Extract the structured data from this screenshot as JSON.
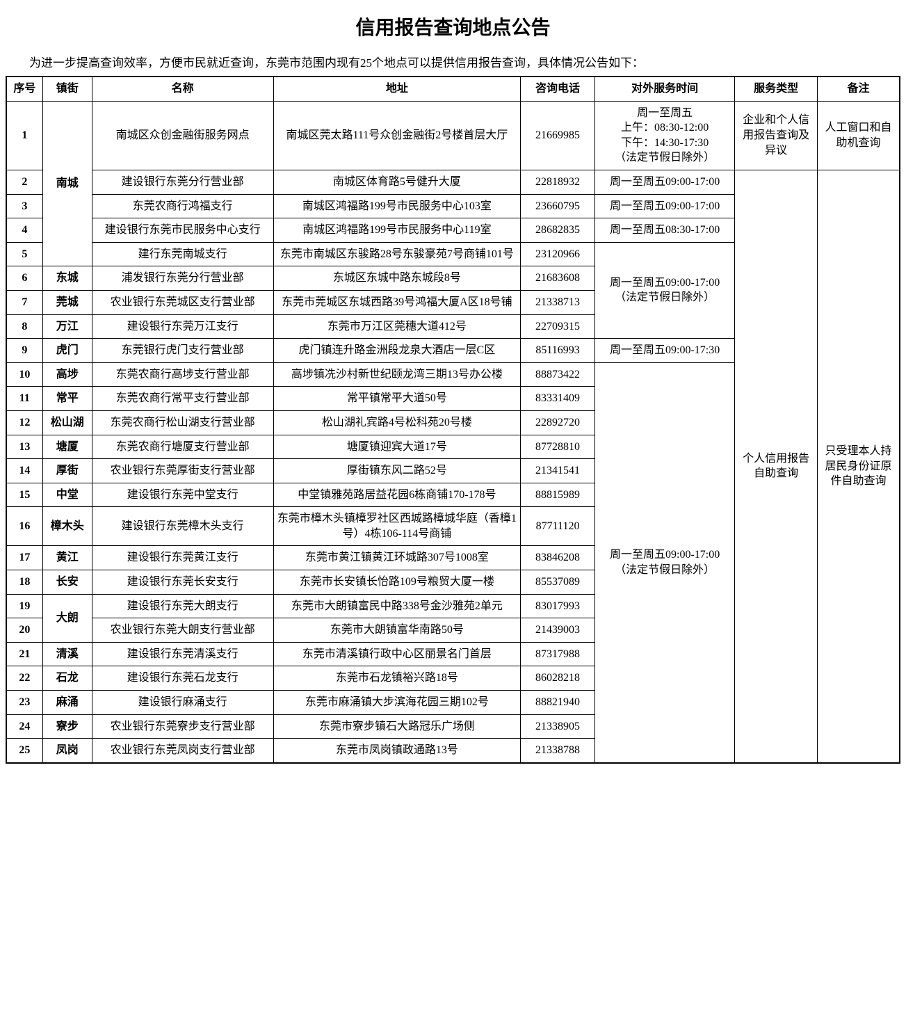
{
  "title": "信用报告查询地点公告",
  "intro": "为进一步提高查询效率，方便市民就近查询，东莞市范围内现有25个地点可以提供信用报告查询，具体情况公告如下：",
  "columns": {
    "num": "序号",
    "town": "镇街",
    "name": "名称",
    "addr": "地址",
    "tel": "咨询电话",
    "time": "对外服务时间",
    "type": "服务类型",
    "note": "备注"
  },
  "towns": {
    "nc": "南城",
    "dc": "东城",
    "gc": "莞城",
    "wj": "万江",
    "hm": "虎门",
    "gb": "高埗",
    "cp": "常平",
    "ssh": "松山湖",
    "tx": "塘厦",
    "hj": "厚街",
    "zt": "中堂",
    "zmt": "樟木头",
    "hjg": "黄江",
    "ca": "长安",
    "dl": "大朗",
    "qx": "清溪",
    "sl": "石龙",
    "my": "麻涌",
    "lb": "寮步",
    "fg": "凤岗"
  },
  "times": {
    "t1": "周一至周五\n上午：08:30-12:00\n下午：14:30-17:30\n（法定节假日除外）",
    "t2": "周一至周五09:00-17:00",
    "t3": "周一至周五08:30-17:00",
    "t4": "周一至周五09:00-17:00\n（法定节假日除外）",
    "t5": "周一至周五09:00-17:30",
    "t6": "周一至周五09:00-17:00\n（法定节假日除外）"
  },
  "types": {
    "y1": "企业和个人信用报告查询及异议",
    "y2": "个人信用报告自助查询"
  },
  "notes": {
    "n1": "人工窗口和自助机查询",
    "n2": "只受理本人持居民身份证原件自助查询"
  },
  "rows": [
    {
      "num": "1",
      "name": "南城区众创金融街服务网点",
      "addr": "南城区莞太路111号众创金融街2号楼首层大厅",
      "tel": "21669985"
    },
    {
      "num": "2",
      "name": "建设银行东莞分行营业部",
      "addr": "南城区体育路5号健升大厦",
      "tel": "22818932"
    },
    {
      "num": "3",
      "name": "东莞农商行鸿福支行",
      "addr": "南城区鸿福路199号市民服务中心103室",
      "tel": "23660795"
    },
    {
      "num": "4",
      "name": "建设银行东莞市民服务中心支行",
      "addr": "南城区鸿福路199号市民服务中心119室",
      "tel": "28682835"
    },
    {
      "num": "5",
      "name": "建行东莞南城支行",
      "addr": "东莞市南城区东骏路28号东骏豪苑7号商铺101号",
      "tel": "23120966"
    },
    {
      "num": "6",
      "name": "浦发银行东莞分行营业部",
      "addr": "东城区东城中路东城段8号",
      "tel": "21683608"
    },
    {
      "num": "7",
      "name": "农业银行东莞城区支行营业部",
      "addr": "东莞市莞城区东城西路39号鸿福大厦A区18号铺",
      "tel": "21338713"
    },
    {
      "num": "8",
      "name": "建设银行东莞万江支行",
      "addr": "东莞市万江区莞穗大道412号",
      "tel": "22709315"
    },
    {
      "num": "9",
      "name": "东莞银行虎门支行营业部",
      "addr": "虎门镇连升路金洲段龙泉大酒店一层C区",
      "tel": "85116993"
    },
    {
      "num": "10",
      "name": "东莞农商行高埗支行营业部",
      "addr": "高埗镇冼沙村新世纪颐龙湾三期13号办公楼",
      "tel": "88873422"
    },
    {
      "num": "11",
      "name": "东莞农商行常平支行营业部",
      "addr": "常平镇常平大道50号",
      "tel": "83331409"
    },
    {
      "num": "12",
      "name": "东莞农商行松山湖支行营业部",
      "addr": "松山湖礼宾路4号松科苑20号楼",
      "tel": "22892720"
    },
    {
      "num": "13",
      "name": "东莞农商行塘厦支行营业部",
      "addr": "塘厦镇迎宾大道17号",
      "tel": "87728810"
    },
    {
      "num": "14",
      "name": "农业银行东莞厚街支行营业部",
      "addr": "厚街镇东风二路52号",
      "tel": "21341541"
    },
    {
      "num": "15",
      "name": "建设银行东莞中堂支行",
      "addr": "中堂镇雅苑路居益花园6栋商铺170-178号",
      "tel": "88815989"
    },
    {
      "num": "16",
      "name": "建设银行东莞樟木头支行",
      "addr": "东莞市樟木头镇樟罗社区西城路樟城华庭（香樟1号）4栋106-114号商铺",
      "tel": "87711120"
    },
    {
      "num": "17",
      "name": "建设银行东莞黄江支行",
      "addr": "东莞市黄江镇黄江环城路307号1008室",
      "tel": "83846208"
    },
    {
      "num": "18",
      "name": "建设银行东莞长安支行",
      "addr": "东莞市长安镇长怡路109号粮贸大厦一楼",
      "tel": "85537089"
    },
    {
      "num": "19",
      "name": "建设银行东莞大朗支行",
      "addr": "东莞市大朗镇富民中路338号金沙雅苑2单元",
      "tel": "83017993"
    },
    {
      "num": "20",
      "name": "农业银行东莞大朗支行营业部",
      "addr": "东莞市大朗镇富华南路50号",
      "tel": "21439003"
    },
    {
      "num": "21",
      "name": "建设银行东莞清溪支行",
      "addr": "东莞市清溪镇行政中心区丽景名门首层",
      "tel": "87317988"
    },
    {
      "num": "22",
      "name": "建设银行东莞石龙支行",
      "addr": "东莞市石龙镇裕兴路18号",
      "tel": "86028218"
    },
    {
      "num": "23",
      "name": "建设银行麻涌支行",
      "addr": "东莞市麻涌镇大步滨海花园三期102号",
      "tel": "88821940"
    },
    {
      "num": "24",
      "name": "农业银行东莞寮步支行营业部",
      "addr": "东莞市寮步镇石大路冠乐广场侧",
      "tel": "21338905"
    },
    {
      "num": "25",
      "name": "农业银行东莞凤岗支行营业部",
      "addr": "东莞市凤岗镇政通路13号",
      "tel": "21338788"
    }
  ]
}
